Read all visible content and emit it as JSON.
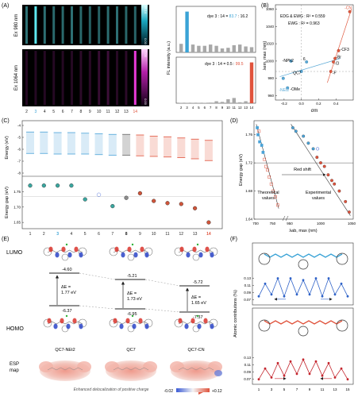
{
  "panels": {
    "A": {
      "letter": "(A)",
      "ex1": "Ex 980 nm",
      "ex2": "Ex 1064 nm",
      "lane_numbers": [
        "2",
        "3",
        "4",
        "5",
        "6",
        "7",
        "8",
        "9",
        "10",
        "11",
        "12",
        "13",
        "14"
      ],
      "cb_high1": "18.14",
      "cb_high2": "7.00",
      "cb_low": "0.00",
      "ylabel": "FL intensity (a.u.)",
      "ratio1_prefix": "dye 3 : 14 = ",
      "ratio1_a": "83.7",
      "ratio1_sep": " : ",
      "ratio1_b": "16.2",
      "ratio2_prefix": "dye 3 : 14 = 0.5 : ",
      "ratio2_b": "99.5",
      "x_ticks": [
        "2",
        "3",
        "4",
        "5",
        "6",
        "7",
        "8",
        "9",
        "10",
        "11",
        "12",
        "13",
        "14"
      ],
      "colors": {
        "highlight3": "#3aa3d6",
        "highlight14": "#e0533c",
        "bar": "#a8a8a8"
      }
    },
    "B": {
      "letter": "(B)",
      "legend1": "EDG & EWG : R² = 0.559",
      "legend2": "EWG : R² = 0.963",
      "xlabel": "σm",
      "ylabel": "λem, max (nm)",
      "y_ticks": [
        "960",
        "980",
        "1000",
        "1020",
        "1040",
        "1060"
      ],
      "x_ticks": [
        "-0.2",
        "0.0",
        "0.2",
        "0.4"
      ],
      "labels": {
        "cn": "-CN",
        "cf3": "-CF3",
        "br": "-Br",
        "cl": "-Cl",
        "f": "-F",
        "nph2": "-NPh2",
        "qc7": "QC7",
        "net2": "-NEt2",
        "ome": "-OMe",
        "n6": "6"
      },
      "colors": {
        "edg": "#5aa9d6",
        "ewg": "#e05a40"
      }
    },
    "C": {
      "letter": "(C)",
      "ylabel_top": "Energy (eV)",
      "ylabel_bottom": "Energy gap (eV)",
      "y_ticks_top": [
        "-4",
        "-5",
        "-6",
        "-7",
        "-8"
      ],
      "y_ticks_bottom": [
        "1.75",
        "1.70",
        "1.65"
      ],
      "x_ticks": [
        "1",
        "2",
        "3",
        "4",
        "5",
        "6",
        "7",
        "8",
        "9",
        "10",
        "11",
        "12",
        "13",
        "14"
      ],
      "colors": {
        "blue": "#4aa3d8",
        "red": "#e0533c",
        "gray": "#8c8c8c",
        "teal": "#3aa7a0"
      }
    },
    "D": {
      "letter": "(D)",
      "ylabel": "Energy gap (eV)",
      "xlabel": "λab, max (nm)",
      "y_ticks": [
        "1.64",
        "1.68",
        "1.72",
        "1.76"
      ],
      "x_ticks": [
        "700",
        "750",
        "950",
        "1000",
        "1050"
      ],
      "red_shift": "Red shift",
      "theoretical": "Theoretical",
      "theoretical2": "values",
      "experimental": "Experimental",
      "experimental2": "values"
    },
    "E": {
      "letter": "(E)",
      "lumo": "LUMO",
      "homo": "HOMO",
      "esp": "ESP",
      "esp2": "map",
      "mol1": "QC7-NEt2",
      "mol2": "QC7",
      "mol3": "QC7-CN",
      "lumo1": "-4.60",
      "lumo2": "-5.21",
      "lumo3": "-5.72",
      "homo1": "-6.37",
      "homo2": "-6.95",
      "homo3": "-7.37",
      "de1": "ΔE =",
      "de1v": "1.77 eV",
      "de2": "ΔE =",
      "de2v": "1.73 eV",
      "de3": "ΔE =",
      "de3v": "1.65 eV",
      "caption": "Enhanced delocalization of positive charge",
      "scale_min": "-0.02",
      "scale_max": "+0.12"
    },
    "F": {
      "letter": "(F)",
      "ylabel": "Atomic contributions (%)",
      "y_ticks": [
        "0.07",
        "0.09",
        "0.11",
        "0.13"
      ],
      "y_ticks_top": [
        "0.07",
        "0.09",
        "0.11",
        "0.13"
      ],
      "x_ticks": [
        "1",
        "3",
        "5",
        "7",
        "9",
        "11",
        "13",
        "15"
      ]
    }
  },
  "chart_data": [
    {
      "type": "bar",
      "title": "",
      "categories": [
        "2",
        "3",
        "4",
        "5",
        "6",
        "7",
        "8",
        "9",
        "10",
        "11",
        "12",
        "13",
        "14"
      ],
      "values": [
        13,
        62,
        12,
        10,
        10,
        12,
        10,
        6,
        7,
        11,
        12,
        9,
        8
      ],
      "annotation": "dye 3 : 14 = 83.7 : 16.2",
      "ylabel": "FL intensity (a.u.)"
    },
    {
      "type": "bar",
      "title": "",
      "categories": [
        "2",
        "3",
        "4",
        "5",
        "6",
        "7",
        "8",
        "9",
        "10",
        "11",
        "12",
        "13",
        "14"
      ],
      "values": [
        0.5,
        0.5,
        0.5,
        0.5,
        0.6,
        1.0,
        3.0,
        2.0,
        6.0,
        8.0,
        1.5,
        3.0,
        62
      ],
      "annotation": "dye 3 : 14 = 0.5 : 99.5",
      "ylabel": "FL intensity (a.u.)"
    },
    {
      "type": "scatter",
      "xlabel": "σm",
      "ylabel": "λem, max (nm)",
      "xlim": [
        -0.3,
        0.6
      ],
      "ylim": [
        955,
        1065
      ],
      "series": [
        {
          "name": "EDG",
          "points": [
            [
              -0.21,
              980
            ],
            [
              -0.16,
              969
            ],
            [
              0.0,
              988
            ],
            [
              0.06,
              999
            ],
            [
              -0.12,
              1000
            ]
          ]
        },
        {
          "name": "EWG",
          "points": [
            [
              0.34,
              988
            ],
            [
              0.37,
              999
            ],
            [
              0.39,
              1003
            ],
            [
              0.43,
              1012
            ],
            [
              0.56,
              1057
            ]
          ]
        }
      ]
    },
    {
      "type": "line",
      "xlabel": "Energy gap (eV)",
      "categories": [
        "1",
        "2",
        "3",
        "4",
        "5",
        "6",
        "7",
        "8",
        "9",
        "10",
        "11",
        "12",
        "13",
        "14"
      ],
      "values": [
        1.77,
        1.77,
        1.77,
        1.77,
        1.725,
        1.74,
        1.703,
        1.73,
        1.745,
        1.72,
        1.713,
        1.71,
        1.696,
        1.65
      ],
      "ylim": [
        1.64,
        1.79
      ]
    },
    {
      "type": "scatter",
      "xlabel": "λab, max (nm)",
      "ylabel": "Energy gap (eV)",
      "ylim": [
        1.64,
        1.78
      ],
      "series": [
        {
          "name": "Theoretical values",
          "points": [
            [
              705,
              1.77
            ],
            [
              707,
              1.76
            ],
            [
              712,
              1.75
            ],
            [
              718,
              1.745
            ],
            [
              722,
              1.735
            ],
            [
              726,
              1.725
            ],
            [
              730,
              1.715
            ],
            [
              735,
              1.71
            ],
            [
              740,
              1.7
            ],
            [
              746,
              1.69
            ],
            [
              752,
              1.68
            ],
            [
              758,
              1.672
            ],
            [
              765,
              1.66
            ],
            [
              710,
              1.765
            ]
          ]
        },
        {
          "name": "Experimental values",
          "points": [
            [
              955,
              1.77
            ],
            [
              960,
              1.765
            ],
            [
              972,
              1.758
            ],
            [
              980,
              1.748
            ],
            [
              988,
              1.74
            ],
            [
              994,
              1.728
            ],
            [
              1000,
              1.72
            ],
            [
              1006,
              1.715
            ],
            [
              1012,
              1.703
            ],
            [
              1018,
              1.695
            ],
            [
              1022,
              1.69
            ],
            [
              1030,
              1.68
            ],
            [
              1040,
              1.665
            ],
            [
              1046,
              1.65
            ]
          ]
        }
      ]
    },
    {
      "type": "line",
      "ylabel": "Atomic contributions (%)",
      "x": [
        1,
        2,
        3,
        4,
        5,
        6,
        7,
        8,
        9,
        10,
        11,
        12,
        13,
        14,
        15
      ],
      "series": [
        {
          "name": "",
          "values": [
            0.08,
            0.115,
            0.085,
            0.13,
            0.08,
            0.13,
            0.085,
            0.125,
            0.085,
            0.13,
            0.08,
            0.13,
            0.085,
            0.115,
            0.08
          ]
        },
        {
          "name": "",
          "values": [
            0.07,
            0.1,
            0.075,
            0.115,
            0.08,
            0.12,
            0.085,
            0.125,
            0.085,
            0.12,
            0.08,
            0.115,
            0.075,
            0.1,
            0.07
          ]
        }
      ]
    }
  ]
}
